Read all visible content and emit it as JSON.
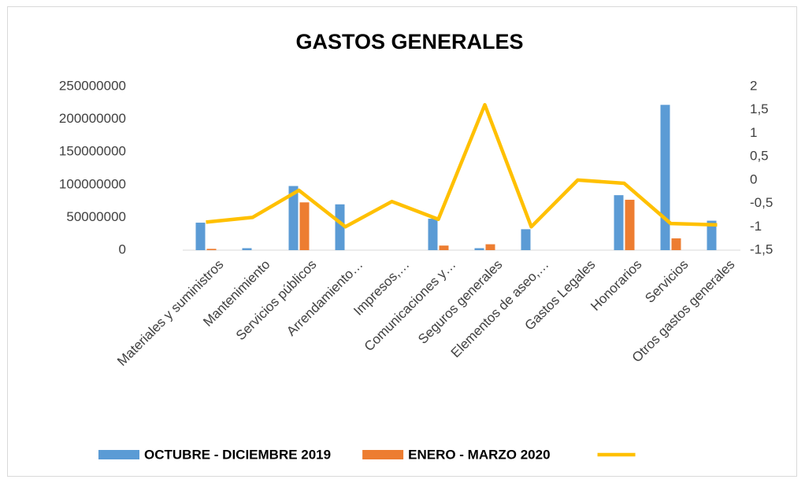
{
  "chart_data": {
    "type": "bar",
    "title": "GASTOS GENERALES",
    "categories": [
      "Materiales y suministros",
      "Mantenimiento",
      "Servicios públicos",
      "Arrendamiento…",
      "Impresos,…",
      "Comunicaciones y…",
      "Seguros generales",
      "Elementos de aseo,…",
      "Gastos Legales",
      "Honorarios",
      "Servicios",
      "Otros gastos generales"
    ],
    "series": [
      {
        "name": "OCTUBRE - DICIEMBRE 2019",
        "color": "#5b9bd5",
        "values": [
          42000000,
          3000000,
          98000000,
          70000000,
          0,
          48000000,
          3000000,
          32000000,
          0,
          84000000,
          222000000,
          45000000
        ]
      },
      {
        "name": "ENERO - MARZO 2020",
        "color": "#ed7d31",
        "values": [
          2000000,
          0,
          73000000,
          0,
          0,
          7000000,
          9000000,
          0,
          0,
          77000000,
          18000000,
          0
        ]
      },
      {
        "type": "line",
        "axis": "y2",
        "color": "#ffc000",
        "values": [
          -0.9,
          -0.8,
          -0.22,
          -1.0,
          -0.46,
          -0.84,
          1.61,
          -1.0,
          0.0,
          -0.07,
          -0.93,
          -0.96
        ]
      }
    ],
    "ylim": [
      0,
      250000000
    ],
    "yticks": [
      0,
      50000000,
      100000000,
      150000000,
      200000000,
      250000000
    ],
    "y2lim": [
      -1.5,
      2
    ],
    "y2ticks": [
      {
        "value": -1.5,
        "label": "-1,5"
      },
      -1,
      {
        "value": -0.5,
        "label": "-0,5"
      },
      0,
      {
        "value": 0.5,
        "label": "0,5"
      },
      1,
      {
        "value": 1.5,
        "label": "1,5"
      },
      2
    ],
    "grid": false,
    "legend": "bottom"
  }
}
